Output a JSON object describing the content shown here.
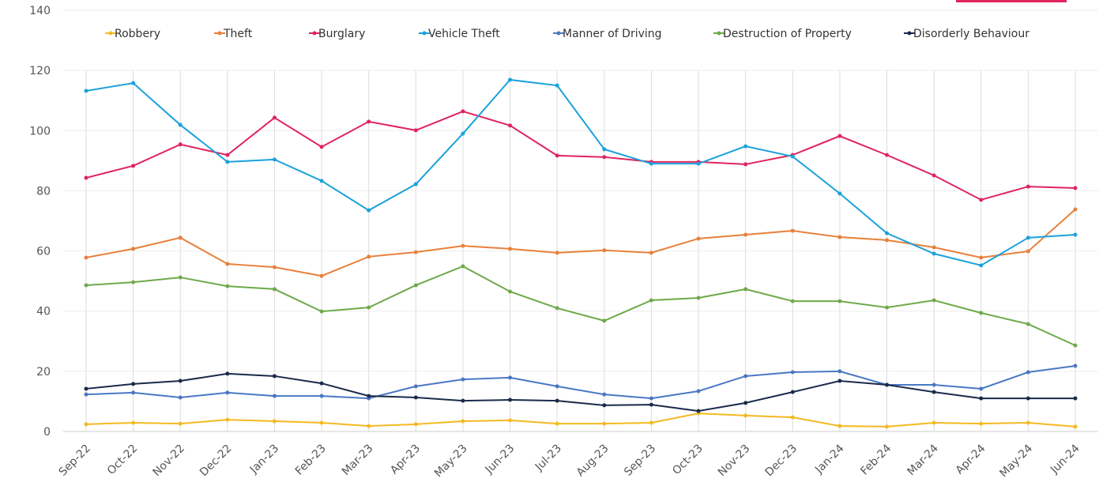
{
  "chart_data": {
    "type": "line",
    "categories": [
      "Sep-22",
      "Oct-22",
      "Nov-22",
      "Dec-22",
      "Jan-23",
      "Feb-23",
      "Mar-23",
      "Apr-23",
      "May-23",
      "Jun-23",
      "Jul-23",
      "Aug-23",
      "Sep-23",
      "Oct-23",
      "Nov-23",
      "Dec-23",
      "Jan-24",
      "Feb-24",
      "Mar-24",
      "Apr-24",
      "May-24",
      "Jun-24"
    ],
    "series": [
      {
        "name": "Robbery",
        "color": "#f5b921",
        "values": [
          2.4,
          2.9,
          2.6,
          3.9,
          3.4,
          2.9,
          1.8,
          2.4,
          3.4,
          3.7,
          2.6,
          2.6,
          2.9,
          6.0,
          5.3,
          4.7,
          1.8,
          1.6,
          2.9,
          2.6,
          2.9,
          1.6
        ]
      },
      {
        "name": "Theft",
        "color": "#e8803a",
        "values": [
          57.8,
          60.7,
          64.4,
          55.7,
          54.6,
          51.7,
          58.1,
          59.6,
          61.7,
          60.7,
          59.4,
          60.2,
          59.4,
          64.1,
          65.4,
          66.7,
          64.6,
          63.6,
          61.2,
          57.8,
          59.9,
          73.8
        ]
      },
      {
        "name": "Burglary",
        "color": "#e0245e",
        "values": [
          84.3,
          88.3,
          95.4,
          91.9,
          104.3,
          94.6,
          103.0,
          100.1,
          106.4,
          101.7,
          91.7,
          91.2,
          89.6,
          89.6,
          88.8,
          91.9,
          98.2,
          91.9,
          85.1,
          77.0,
          81.4,
          80.9
        ]
      },
      {
        "name": "Vehicle Theft",
        "color": "#1ba1dc",
        "values": [
          113.2,
          115.8,
          101.9,
          89.6,
          90.4,
          83.3,
          73.5,
          82.2,
          99.0,
          116.9,
          115.0,
          93.8,
          89.0,
          89.0,
          94.8,
          91.4,
          79.1,
          65.9,
          59.1,
          55.2,
          64.4,
          65.4
        ]
      },
      {
        "name": "Manner of Driving",
        "color": "#4a78c4",
        "values": [
          12.3,
          12.9,
          11.3,
          12.9,
          11.8,
          11.8,
          11.0,
          15.0,
          17.3,
          17.9,
          15.0,
          12.3,
          11.0,
          13.4,
          18.4,
          19.7,
          20.0,
          15.5,
          15.5,
          14.2,
          19.7,
          21.8
        ]
      },
      {
        "name": "Destruction of Property",
        "color": "#6ea94a",
        "values": [
          48.6,
          49.6,
          51.2,
          48.3,
          47.3,
          39.9,
          41.2,
          48.6,
          54.9,
          46.5,
          41.0,
          36.8,
          43.6,
          44.4,
          47.3,
          43.3,
          43.3,
          41.2,
          43.6,
          39.4,
          35.7,
          28.6
        ]
      },
      {
        "name": "Disorderly Behaviour",
        "color": "#1a2a4a",
        "values": [
          14.2,
          15.8,
          16.8,
          19.2,
          18.4,
          16.0,
          11.8,
          11.3,
          10.2,
          10.5,
          10.2,
          8.7,
          8.9,
          6.8,
          9.5,
          13.1,
          16.8,
          15.5,
          13.1,
          11.0,
          11.0,
          11.0
        ]
      }
    ],
    "ylim": [
      0,
      140
    ],
    "yticks": [
      0,
      20,
      40,
      60,
      80,
      100,
      120,
      140
    ],
    "grid": true,
    "legend": "top"
  }
}
